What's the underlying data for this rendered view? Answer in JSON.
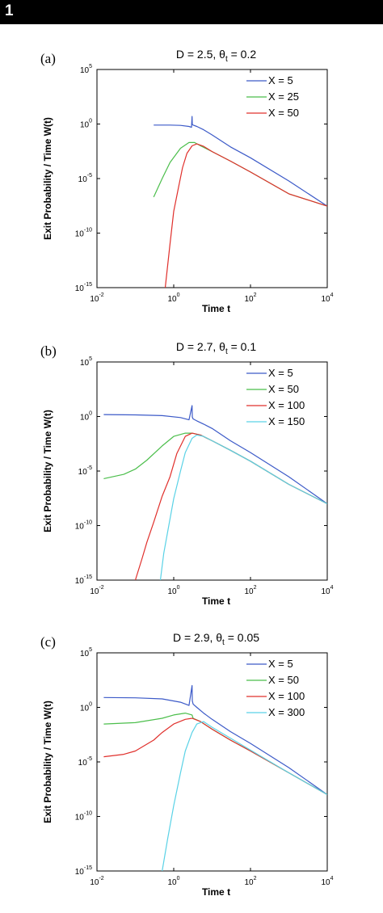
{
  "figure_number": "1",
  "colors": {
    "blue": "#3c5ac8",
    "green": "#4bbe4b",
    "red": "#e0302c",
    "cyan": "#5ad2e6"
  },
  "chart_data": [
    {
      "type": "line",
      "panel": "(a)",
      "title": "D = 2.5, θt = 0.2",
      "title_parts": [
        "D = 2.5, θ",
        "t",
        " = 0.2"
      ],
      "xlabel": "Time  t",
      "ylabel": "Exit Probability / Time  W(t)",
      "xscale": "log",
      "yscale": "log",
      "xlim": [
        0.01,
        10000
      ],
      "ylim": [
        1e-15,
        100000
      ],
      "xticks": [
        {
          "b": "10",
          "e": "-2"
        },
        {
          "b": "10",
          "e": "0"
        },
        {
          "b": "10",
          "e": "2"
        },
        {
          "b": "10",
          "e": "4"
        }
      ],
      "yticks": [
        {
          "b": "10",
          "e": "-15"
        },
        {
          "b": "10",
          "e": "-10"
        },
        {
          "b": "10",
          "e": "-5"
        },
        {
          "b": "10",
          "e": "0"
        },
        {
          "b": "10",
          "e": "5"
        }
      ],
      "grid": false,
      "legend": "top-right",
      "series": [
        {
          "name": "X = 5",
          "color": "blue",
          "x": [
            0.3,
            0.8,
            1.5,
            2.5,
            2.9,
            3.0,
            3.05,
            3.2,
            4,
            6,
            10,
            30,
            100,
            1000,
            10000
          ],
          "y": [
            0.8,
            0.8,
            0.75,
            0.6,
            0.5,
            5,
            0.9,
            0.8,
            0.6,
            0.3,
            0.1,
            0.008,
            0.0008,
            6e-06,
            3e-08
          ]
        },
        {
          "name": "X = 25",
          "color": "green",
          "x": [
            0.3,
            0.5,
            0.8,
            1.5,
            2.5,
            3.5,
            5,
            10,
            30,
            100,
            1000,
            10000
          ],
          "y": [
            2e-07,
            1e-05,
            0.0003,
            0.006,
            0.02,
            0.02,
            0.01,
            0.003,
            0.0004,
            4e-05,
            4e-07,
            3e-08
          ]
        },
        {
          "name": "X = 50",
          "color": "red",
          "x": [
            0.6,
            0.8,
            1,
            1.3,
            1.7,
            2.2,
            3,
            4,
            6,
            10,
            30,
            100,
            1000,
            10000
          ],
          "y": [
            1e-15,
            1e-11,
            1e-08,
            1e-06,
            0.0001,
            0.002,
            0.01,
            0.015,
            0.009,
            0.003,
            0.0004,
            4e-05,
            4e-07,
            3e-08
          ]
        }
      ]
    },
    {
      "type": "line",
      "panel": "(b)",
      "title": "D = 2.7, θt = 0.1",
      "title_parts": [
        "D = 2.7, θ",
        "t",
        " = 0.1"
      ],
      "xlabel": "Time  t",
      "ylabel": "Exit Probability / Time  W(t)",
      "xscale": "log",
      "yscale": "log",
      "xlim": [
        0.01,
        10000
      ],
      "ylim": [
        1e-15,
        100000
      ],
      "xticks": [
        {
          "b": "10",
          "e": "-2"
        },
        {
          "b": "10",
          "e": "0"
        },
        {
          "b": "10",
          "e": "2"
        },
        {
          "b": "10",
          "e": "4"
        }
      ],
      "yticks": [
        {
          "b": "10",
          "e": "-15"
        },
        {
          "b": "10",
          "e": "-10"
        },
        {
          "b": "10",
          "e": "-5"
        },
        {
          "b": "10",
          "e": "0"
        },
        {
          "b": "10",
          "e": "5"
        }
      ],
      "grid": false,
      "legend": "top-right",
      "series": [
        {
          "name": "X = 5",
          "color": "blue",
          "x": [
            0.015,
            0.1,
            0.5,
            1.5,
            2.5,
            3.0,
            3.05,
            3.2,
            4,
            6,
            10,
            30,
            100,
            1000,
            10000
          ],
          "y": [
            1.5,
            1.4,
            1.2,
            0.8,
            0.5,
            10,
            0.9,
            0.6,
            0.4,
            0.2,
            0.08,
            0.006,
            0.0005,
            3e-06,
            1e-08
          ]
        },
        {
          "name": "X = 50",
          "color": "green",
          "x": [
            0.015,
            0.05,
            0.1,
            0.2,
            0.5,
            1,
            2,
            3,
            5,
            10,
            30,
            100,
            1000,
            10000
          ],
          "y": [
            2e-06,
            5e-06,
            1.5e-05,
            0.0001,
            0.002,
            0.015,
            0.03,
            0.03,
            0.02,
            0.006,
            0.0008,
            8e-05,
            6e-07,
            1e-08
          ]
        },
        {
          "name": "X = 100",
          "color": "red",
          "x": [
            0.1,
            0.15,
            0.2,
            0.3,
            0.5,
            0.8,
            1.2,
            2,
            3,
            5,
            10,
            30,
            100,
            1000,
            10000
          ],
          "y": [
            1e-15,
            1e-13,
            3e-12,
            2e-10,
            5e-08,
            3e-06,
            0.0004,
            0.015,
            0.03,
            0.02,
            0.006,
            0.0008,
            8e-05,
            6e-07,
            1e-08
          ]
        },
        {
          "name": "X = 150",
          "color": "cyan",
          "x": [
            0.45,
            0.55,
            0.7,
            1,
            1.5,
            2,
            3,
            4,
            6,
            10,
            30,
            100,
            1000,
            10000
          ],
          "y": [
            1e-15,
            3e-13,
            3e-11,
            3e-08,
            1e-05,
            0.0005,
            0.01,
            0.02,
            0.015,
            0.006,
            0.0008,
            8e-05,
            6e-07,
            1e-08
          ]
        }
      ]
    },
    {
      "type": "line",
      "panel": "(c)",
      "title": "D = 2.9, θt = 0.05",
      "title_parts": [
        "D = 2.9, θ",
        "t",
        " = 0.05"
      ],
      "xlabel": "Time  t",
      "ylabel": "Exit Probability / Time  W(t)",
      "xscale": "log",
      "yscale": "log",
      "xlim": [
        0.01,
        10000
      ],
      "ylim": [
        1e-15,
        100000
      ],
      "xticks": [
        {
          "b": "10",
          "e": "-2"
        },
        {
          "b": "10",
          "e": "0"
        },
        {
          "b": "10",
          "e": "2"
        },
        {
          "b": "10",
          "e": "4"
        }
      ],
      "yticks": [
        {
          "b": "10",
          "e": "-15"
        },
        {
          "b": "10",
          "e": "-10"
        },
        {
          "b": "10",
          "e": "-5"
        },
        {
          "b": "10",
          "e": "0"
        },
        {
          "b": "10",
          "e": "5"
        }
      ],
      "grid": false,
      "legend": "top-right",
      "series": [
        {
          "name": "X = 5",
          "color": "blue",
          "x": [
            0.015,
            0.1,
            0.5,
            1.5,
            2.5,
            3.0,
            3.05,
            3.2,
            4,
            6,
            10,
            30,
            100,
            1000,
            10000
          ],
          "y": [
            8,
            7.5,
            6,
            3,
            1.5,
            100,
            4,
            2,
            1,
            0.3,
            0.08,
            0.006,
            0.0005,
            3e-06,
            1e-08
          ]
        },
        {
          "name": "X = 50",
          "color": "green",
          "x": [
            0.015,
            0.1,
            0.5,
            1,
            2,
            3,
            3.2,
            5,
            10,
            30,
            100,
            1000,
            10000
          ],
          "y": [
            0.03,
            0.04,
            0.1,
            0.2,
            0.3,
            0.2,
            0.1,
            0.05,
            0.01,
            0.001,
            0.0001,
            1e-06,
            1e-08
          ]
        },
        {
          "name": "X = 100",
          "color": "red",
          "x": [
            0.015,
            0.05,
            0.1,
            0.3,
            0.5,
            1,
            2,
            3,
            5,
            10,
            30,
            100,
            1000,
            10000
          ],
          "y": [
            3e-05,
            5e-05,
            0.0001,
            0.001,
            0.005,
            0.03,
            0.08,
            0.1,
            0.05,
            0.01,
            0.001,
            0.0001,
            1e-06,
            1e-08
          ]
        },
        {
          "name": "X = 300",
          "color": "cyan",
          "x": [
            0.5,
            0.7,
            1,
            1.5,
            2,
            3,
            4,
            6,
            10,
            30,
            100,
            1000,
            10000
          ],
          "y": [
            1e-15,
            1e-12,
            1e-09,
            1e-06,
            0.0001,
            0.005,
            0.03,
            0.05,
            0.015,
            0.0015,
            0.00012,
            1e-06,
            1e-08
          ]
        }
      ]
    }
  ]
}
